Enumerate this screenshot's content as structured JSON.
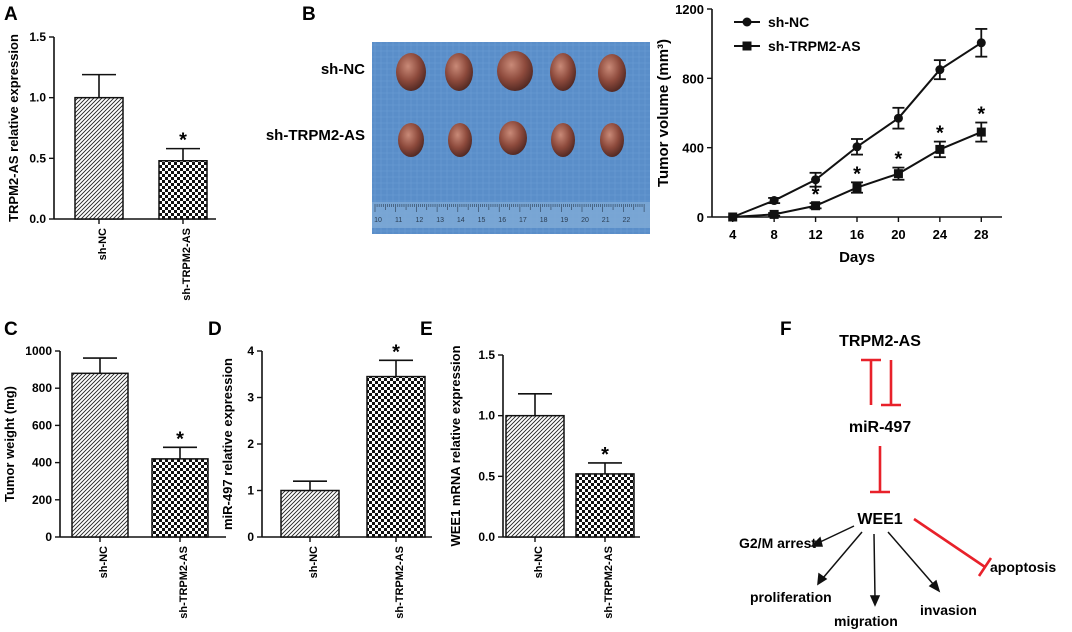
{
  "chart_data": [
    {
      "panel": "A",
      "type": "bar",
      "ylabel": "TRPM2-AS relative expression",
      "ylim": [
        0,
        1.5
      ],
      "yticks": [
        "0.0",
        "0.5",
        "1.0",
        "1.5"
      ],
      "ytick_values": [
        0,
        0.5,
        1.0,
        1.5
      ],
      "categories": [
        "sh-NC",
        "sh-TRPM2-AS"
      ],
      "values": [
        1.0,
        0.48
      ],
      "errors": [
        0.19,
        0.1
      ],
      "patterns": [
        "hatch",
        "checker"
      ],
      "significance": [
        "",
        "*"
      ]
    },
    {
      "panel": "C",
      "type": "bar",
      "ylabel": "Tumor weight (mg)",
      "ylim": [
        0,
        1000
      ],
      "yticks": [
        "0",
        "200",
        "400",
        "600",
        "800",
        "1000"
      ],
      "ytick_values": [
        0,
        200,
        400,
        600,
        800,
        1000
      ],
      "categories": [
        "sh-NC",
        "sh-TRPM2-AS"
      ],
      "values": [
        880,
        420
      ],
      "errors": [
        82,
        62
      ],
      "patterns": [
        "hatch",
        "checker"
      ],
      "significance": [
        "",
        "*"
      ]
    },
    {
      "panel": "D",
      "type": "bar",
      "ylabel": "miR-497 relative expression",
      "ylim": [
        0,
        4
      ],
      "yticks": [
        "0",
        "1",
        "2",
        "3",
        "4"
      ],
      "ytick_values": [
        0,
        1,
        2,
        3,
        4
      ],
      "categories": [
        "sh-NC",
        "sh-TRPM2-AS"
      ],
      "values": [
        1.0,
        3.45
      ],
      "errors": [
        0.2,
        0.35
      ],
      "patterns": [
        "hatch",
        "checker"
      ],
      "significance": [
        "",
        "*"
      ]
    },
    {
      "panel": "E",
      "type": "bar",
      "ylabel": "WEE1 mRNA relative expression",
      "ylim": [
        0,
        1.5
      ],
      "yticks": [
        "0.0",
        "0.5",
        "1.0",
        "1.5"
      ],
      "ytick_values": [
        0,
        0.5,
        1.0,
        1.5
      ],
      "categories": [
        "sh-NC",
        "sh-TRPM2-AS"
      ],
      "values": [
        1.0,
        0.52
      ],
      "errors": [
        0.18,
        0.09
      ],
      "patterns": [
        "hatch",
        "checker"
      ],
      "significance": [
        "",
        "*"
      ]
    },
    {
      "panel": "B",
      "type": "line",
      "xlabel": "Days",
      "ylabel": "Tumor volume (mm³)",
      "x": [
        4,
        8,
        12,
        16,
        20,
        24,
        28
      ],
      "ylim": [
        0,
        1200
      ],
      "yticks": [
        "0",
        "400",
        "800",
        "1200"
      ],
      "ytick_values": [
        0,
        400,
        800,
        1200
      ],
      "legend_position": "top-left",
      "series": [
        {
          "name": "sh-NC",
          "marker": "circle",
          "values": [
            0,
            95,
            215,
            405,
            570,
            850,
            1005
          ],
          "errors": [
            0,
            15,
            40,
            45,
            60,
            55,
            80
          ],
          "significance": [
            "",
            "",
            "",
            "",
            "",
            "",
            ""
          ]
        },
        {
          "name": "sh-TRPM2-AS",
          "marker": "square",
          "values": [
            0,
            15,
            65,
            170,
            250,
            390,
            490
          ],
          "errors": [
            0,
            8,
            15,
            30,
            35,
            45,
            55
          ],
          "significance": [
            "",
            "",
            "*",
            "*",
            "*",
            "*",
            "*"
          ]
        }
      ]
    }
  ],
  "labels": {
    "A": "A",
    "B": "B",
    "C": "C",
    "D": "D",
    "E": "E",
    "F": "F"
  },
  "photo": {
    "row_labels": [
      "sh-NC",
      "sh-TRPM2-AS"
    ],
    "ruler_numbers": [
      "10",
      "11",
      "12",
      "13",
      "14",
      "15",
      "16",
      "17",
      "18",
      "19",
      "20",
      "21",
      "22"
    ]
  },
  "diagram": {
    "trpm2": "TRPM2-AS",
    "mir": "miR-497",
    "wee1": "WEE1",
    "g2m": "G2/M arrest",
    "proliferation": "proliferation",
    "migration": "migration",
    "invasion": "invasion",
    "apoptosis": "apoptosis"
  },
  "colors": {
    "inhibit": "#e8212a",
    "ink": "#111111",
    "photo_bg": "#5a8ec9"
  }
}
